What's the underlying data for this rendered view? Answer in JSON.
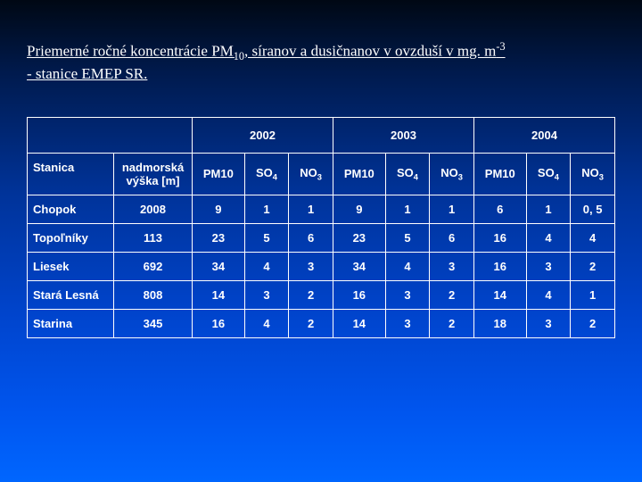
{
  "title_parts": {
    "pre": "Priemerné ročné koncentrácie PM",
    "pm_sub": "10",
    "mid": ", síranov a dusičnanov v ovzduší v ",
    "unit_prefix": "m",
    "unit_g": "g. m",
    "unit_sup": "-3",
    "post": " - stanice EMEP SR."
  },
  "years": [
    "2002",
    "2003",
    "2004"
  ],
  "header": {
    "stanica": "Stanica",
    "nadmorska": "nadmorská výška [m]",
    "pm10": "PM10",
    "so4": "SO4",
    "no3": "NO3"
  },
  "rows": [
    {
      "station": "Chopok",
      "elev": "2008",
      "y2002": {
        "pm10": "9",
        "so4": "1",
        "no3": "1"
      },
      "y2003": {
        "pm10": "9",
        "so4": "1",
        "no3": "1"
      },
      "y2004": {
        "pm10": "6",
        "so4": "1",
        "no3": "0, 5"
      }
    },
    {
      "station": "Topoľníky",
      "elev": "113",
      "y2002": {
        "pm10": "23",
        "so4": "5",
        "no3": "6"
      },
      "y2003": {
        "pm10": "23",
        "so4": "5",
        "no3": "6"
      },
      "y2004": {
        "pm10": "16",
        "so4": "4",
        "no3": "4"
      }
    },
    {
      "station": "Liesek",
      "elev": "692",
      "y2002": {
        "pm10": "34",
        "so4": "4",
        "no3": "3"
      },
      "y2003": {
        "pm10": "34",
        "so4": "4",
        "no3": "3"
      },
      "y2004": {
        "pm10": "16",
        "so4": "3",
        "no3": "2"
      }
    },
    {
      "station": "Stará Lesná",
      "elev": "808",
      "y2002": {
        "pm10": "14",
        "so4": "3",
        "no3": "2"
      },
      "y2003": {
        "pm10": "16",
        "so4": "3",
        "no3": "2"
      },
      "y2004": {
        "pm10": "14",
        "so4": "4",
        "no3": "1"
      }
    },
    {
      "station": "Starina",
      "elev": "345",
      "y2002": {
        "pm10": "16",
        "so4": "4",
        "no3": "2"
      },
      "y2003": {
        "pm10": "14",
        "so4": "3",
        "no3": "2"
      },
      "y2004": {
        "pm10": "18",
        "so4": "3",
        "no3": "2"
      }
    }
  ],
  "colors": {
    "text": "#ffffff",
    "border": "#ffffff",
    "bg_top": "#000814",
    "bg_bottom": "#0066ff"
  },
  "table_style": {
    "font_family": "Arial, sans-serif",
    "font_size_pt": 10,
    "title_font_family": "Times New Roman",
    "title_font_size_pt": 13
  }
}
